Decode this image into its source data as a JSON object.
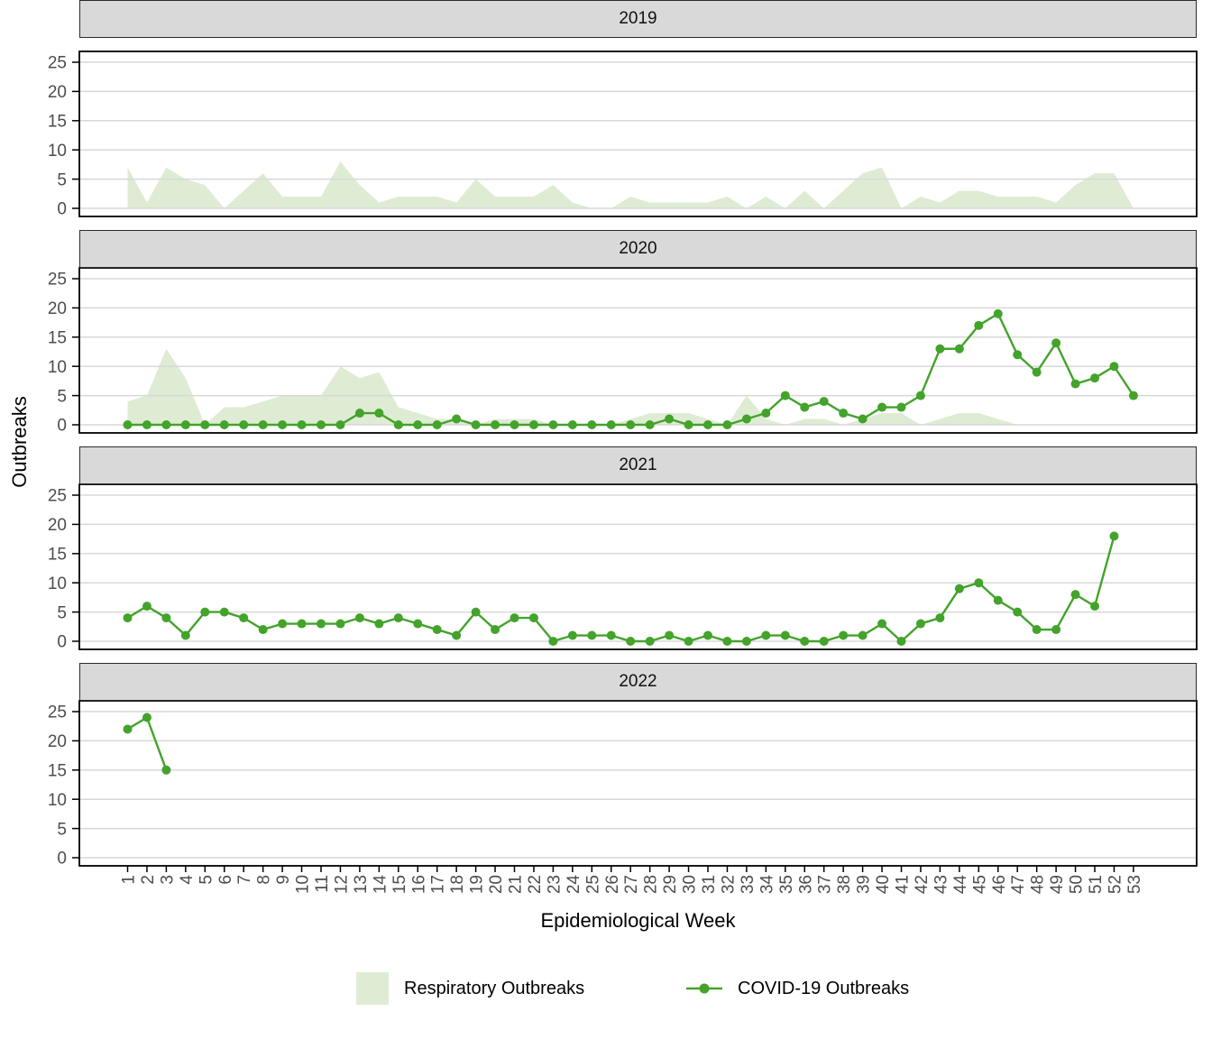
{
  "figure": {
    "y_axis_title": "Outbreaks",
    "x_axis_title": "Epidemiological Week"
  },
  "legend": {
    "respiratory_label": "Respiratory Outbreaks",
    "covid_label": "COVID-19 Outbreaks"
  },
  "colors": {
    "area_fill": "#dfecd4",
    "line_green": "#43a32b",
    "grid": "#d8d8d8",
    "strip_bg": "#d9d9d9",
    "panel_border": "#000000",
    "tick_text": "#4d4d4d",
    "title_text": "#000000"
  },
  "chart_data": {
    "type": "area+line, faceted by year",
    "x_label": "Epidemiological Week",
    "y_label": "Outbreaks",
    "weeks": [
      1,
      2,
      3,
      4,
      5,
      6,
      7,
      8,
      9,
      10,
      11,
      12,
      13,
      14,
      15,
      16,
      17,
      18,
      19,
      20,
      21,
      22,
      23,
      24,
      25,
      26,
      27,
      28,
      29,
      30,
      31,
      32,
      33,
      34,
      35,
      36,
      37,
      38,
      39,
      40,
      41,
      42,
      43,
      44,
      45,
      46,
      47,
      48,
      49,
      50,
      51,
      52,
      53
    ],
    "y_ticks": [
      0,
      5,
      10,
      15,
      20,
      25
    ],
    "ylim": [
      0,
      25
    ],
    "grid": "horizontal major only",
    "legend_position": "bottom",
    "series_legend": [
      "Respiratory Outbreaks",
      "COVID-19 Outbreaks"
    ],
    "facets": [
      {
        "label": "2019",
        "respiratory_outbreaks": [
          7,
          1,
          7,
          5,
          4,
          0,
          3,
          6,
          2,
          2,
          2,
          8,
          4,
          1,
          2,
          2,
          2,
          1,
          5,
          2,
          2,
          2,
          4,
          1,
          0,
          0,
          2,
          1,
          1,
          1,
          1,
          2,
          0,
          2,
          0,
          3,
          0,
          3,
          6,
          7,
          0,
          2,
          1,
          3,
          3,
          2,
          2,
          2,
          1,
          4,
          6,
          6,
          0
        ],
        "covid_outbreaks": null
      },
      {
        "label": "2020",
        "respiratory_outbreaks": [
          4,
          5,
          13,
          8,
          0,
          3,
          3,
          4,
          5,
          5,
          5,
          10,
          8,
          9,
          3,
          2,
          1,
          1,
          0,
          1,
          1,
          1,
          0,
          0,
          0,
          0,
          1,
          2,
          2,
          2,
          1,
          0,
          5,
          1,
          0,
          1,
          1,
          0,
          1,
          2,
          2,
          0,
          1,
          2,
          2,
          1,
          0,
          0,
          0,
          0,
          0,
          0,
          0
        ],
        "covid_outbreaks": [
          0,
          0,
          0,
          0,
          0,
          0,
          0,
          0,
          0,
          0,
          0,
          0,
          2,
          2,
          0,
          0,
          0,
          1,
          0,
          0,
          0,
          0,
          0,
          0,
          0,
          0,
          0,
          0,
          1,
          0,
          0,
          0,
          1,
          2,
          5,
          3,
          4,
          2,
          1,
          3,
          3,
          5,
          13,
          13,
          17,
          19,
          12,
          9,
          14,
          7,
          8,
          10,
          5
        ]
      },
      {
        "label": "2021",
        "respiratory_outbreaks": [],
        "covid_outbreaks": [
          4,
          6,
          4,
          1,
          5,
          5,
          4,
          2,
          3,
          3,
          3,
          3,
          4,
          3,
          4,
          3,
          2,
          1,
          5,
          2,
          4,
          4,
          0,
          1,
          1,
          1,
          0,
          0,
          1,
          0,
          1,
          0,
          0,
          1,
          1,
          0,
          0,
          1,
          1,
          3,
          0,
          3,
          4,
          9,
          10,
          7,
          5,
          2,
          2,
          8,
          6,
          18
        ]
      },
      {
        "label": "2022",
        "respiratory_outbreaks": [],
        "covid_outbreaks": [
          22,
          24,
          15
        ]
      }
    ]
  }
}
